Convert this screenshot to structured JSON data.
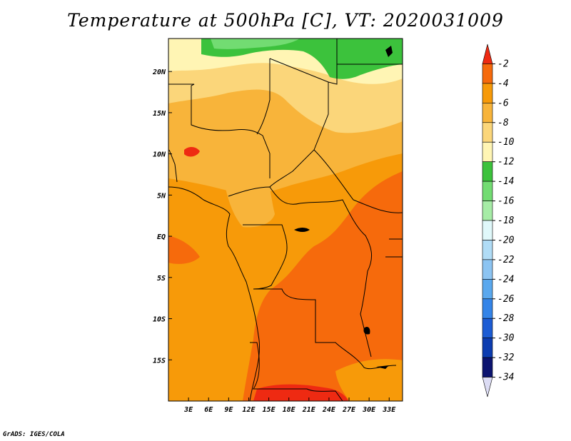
{
  "title": "Temperature at 500hPa [C], VT: 2020031009",
  "credit": "GrADS: IGES/COLA",
  "map": {
    "lon_range": [
      0,
      35
    ],
    "lat_range": [
      -20,
      24
    ],
    "x_ticks": [
      {
        "lon": 3,
        "label": "3E"
      },
      {
        "lon": 6,
        "label": "6E"
      },
      {
        "lon": 9,
        "label": "9E"
      },
      {
        "lon": 12,
        "label": "12E"
      },
      {
        "lon": 15,
        "label": "15E"
      },
      {
        "lon": 18,
        "label": "18E"
      },
      {
        "lon": 21,
        "label": "21E"
      },
      {
        "lon": 24,
        "label": "24E"
      },
      {
        "lon": 27,
        "label": "27E"
      },
      {
        "lon": 30,
        "label": "30E"
      },
      {
        "lon": 33,
        "label": "33E"
      }
    ],
    "y_ticks": [
      {
        "lat": 20,
        "label": "20N"
      },
      {
        "lat": 15,
        "label": "15N"
      },
      {
        "lat": 10,
        "label": "10N"
      },
      {
        "lat": 5,
        "label": "5N"
      },
      {
        "lat": 0,
        "label": "EQ"
      },
      {
        "lat": -5,
        "label": "5S"
      },
      {
        "lat": -10,
        "label": "10S"
      },
      {
        "lat": -15,
        "label": "15S"
      }
    ]
  },
  "colorbar": {
    "labels": [
      "-2",
      "-4",
      "-6",
      "-8",
      "-10",
      "-12",
      "-14",
      "-16",
      "-18",
      "-20",
      "-22",
      "-24",
      "-26",
      "-28",
      "-30",
      "-32",
      "-34"
    ],
    "colors": [
      "#ee2a12",
      "#f66a0c",
      "#f79a09",
      "#f8b43a",
      "#fbd67a",
      "#fff5b4",
      "#3cc23c",
      "#72dc72",
      "#a6eca6",
      "#e0f8fa",
      "#b0dcf6",
      "#8cc4f2",
      "#5aa8ee",
      "#3484e8",
      "#1c5cd4",
      "#0c3cb0",
      "#0c1470",
      "#dcdcf4"
    ]
  }
}
